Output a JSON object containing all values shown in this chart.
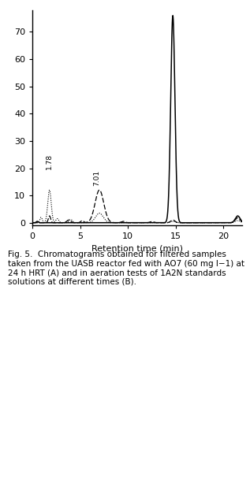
{
  "title": "",
  "xlabel": "Retention time (min)",
  "ylabel": "",
  "xlim": [
    0,
    22
  ],
  "ylim": [
    -1,
    78
  ],
  "yticks": [
    0,
    10,
    20,
    30,
    40,
    50,
    60,
    70
  ],
  "xticks": [
    0,
    5,
    10,
    15,
    20
  ],
  "background_color": "#ffffff",
  "ann1_text": "1.78",
  "ann1_x": 1.78,
  "ann1_y": 19.5,
  "ann2_text": "7.01",
  "ann2_x": 6.7,
  "ann2_y": 13.5,
  "solid_color": "#000000",
  "dashed_color": "#000000",
  "dotted_color": "#000000",
  "caption": "Fig. 5.  Chromatograms obtained for filtered samples taken from the UASB reactor fed with AO7 (60 mg l−1) at 24 h HRT (A) and in aeration tests of 1A2N standards solutions at different times (B)."
}
